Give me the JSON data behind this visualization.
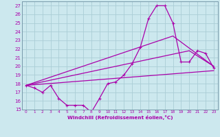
{
  "xlabel": "Windchill (Refroidissement éolien,°C)",
  "bg_color": "#cce8ee",
  "grid_color": "#aacdd6",
  "line_color": "#aa00aa",
  "spine_color": "#7799aa",
  "xlim": [
    -0.5,
    23.5
  ],
  "ylim": [
    15,
    27.5
  ],
  "xticks": [
    0,
    1,
    2,
    3,
    4,
    5,
    6,
    7,
    8,
    9,
    10,
    11,
    12,
    13,
    14,
    15,
    16,
    17,
    18,
    19,
    20,
    21,
    22,
    23
  ],
  "yticks": [
    15,
    16,
    17,
    18,
    19,
    20,
    21,
    22,
    23,
    24,
    25,
    26,
    27
  ],
  "series_main": {
    "x": [
      0,
      1,
      2,
      3,
      4,
      5,
      6,
      7,
      8,
      9,
      10,
      11,
      12,
      13,
      14,
      15,
      16,
      17,
      18,
      19,
      20,
      21,
      22,
      23
    ],
    "y": [
      17.8,
      17.5,
      17.0,
      17.8,
      16.3,
      15.5,
      15.5,
      15.5,
      14.7,
      16.3,
      18.0,
      18.2,
      19.0,
      20.3,
      22.2,
      25.5,
      27.0,
      27.0,
      25.0,
      20.5,
      20.5,
      21.8,
      21.5,
      19.8
    ]
  },
  "series_line2": {
    "x": [
      0,
      23
    ],
    "y": [
      17.8,
      19.5
    ]
  },
  "series_line3": {
    "x": [
      0,
      18,
      23
    ],
    "y": [
      17.8,
      23.5,
      20.0
    ]
  },
  "series_line4": {
    "x": [
      0,
      20,
      23
    ],
    "y": [
      17.8,
      21.8,
      20.0
    ]
  }
}
